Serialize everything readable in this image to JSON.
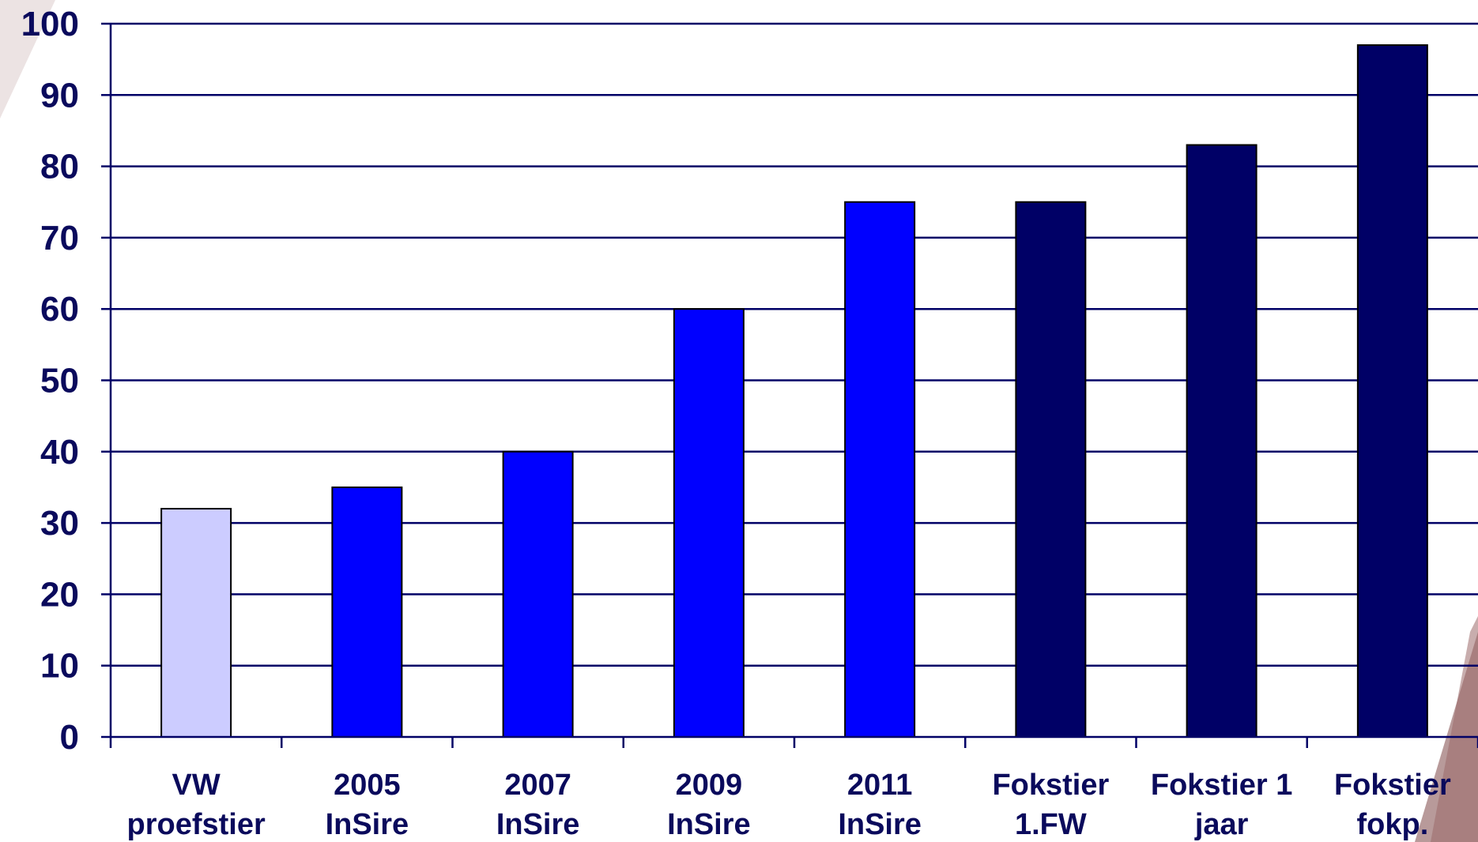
{
  "chart_data": {
    "type": "bar",
    "title": "",
    "xlabel": "",
    "ylabel": "",
    "ylim": [
      0,
      100
    ],
    "yticks": [
      0,
      10,
      20,
      30,
      40,
      50,
      60,
      70,
      80,
      90,
      100
    ],
    "grid": true,
    "categories": [
      [
        "VW",
        "proefstier"
      ],
      [
        "2005",
        "InSire"
      ],
      [
        "2007",
        "InSire"
      ],
      [
        "2009",
        "InSire"
      ],
      [
        "2011",
        "InSire"
      ],
      [
        "Fokstier",
        "1.FW"
      ],
      [
        "Fokstier 1",
        "jaar"
      ],
      [
        "Fokstier",
        "fokp."
      ]
    ],
    "values": [
      32,
      35,
      40,
      60,
      75,
      75,
      83,
      97
    ],
    "bar_colors": [
      "#ccccff",
      "#0000ff",
      "#0000ff",
      "#0000ff",
      "#0000ff",
      "#000066",
      "#000066",
      "#000066"
    ],
    "axis_color": "#000066",
    "text_color": "#0a0a5c"
  }
}
